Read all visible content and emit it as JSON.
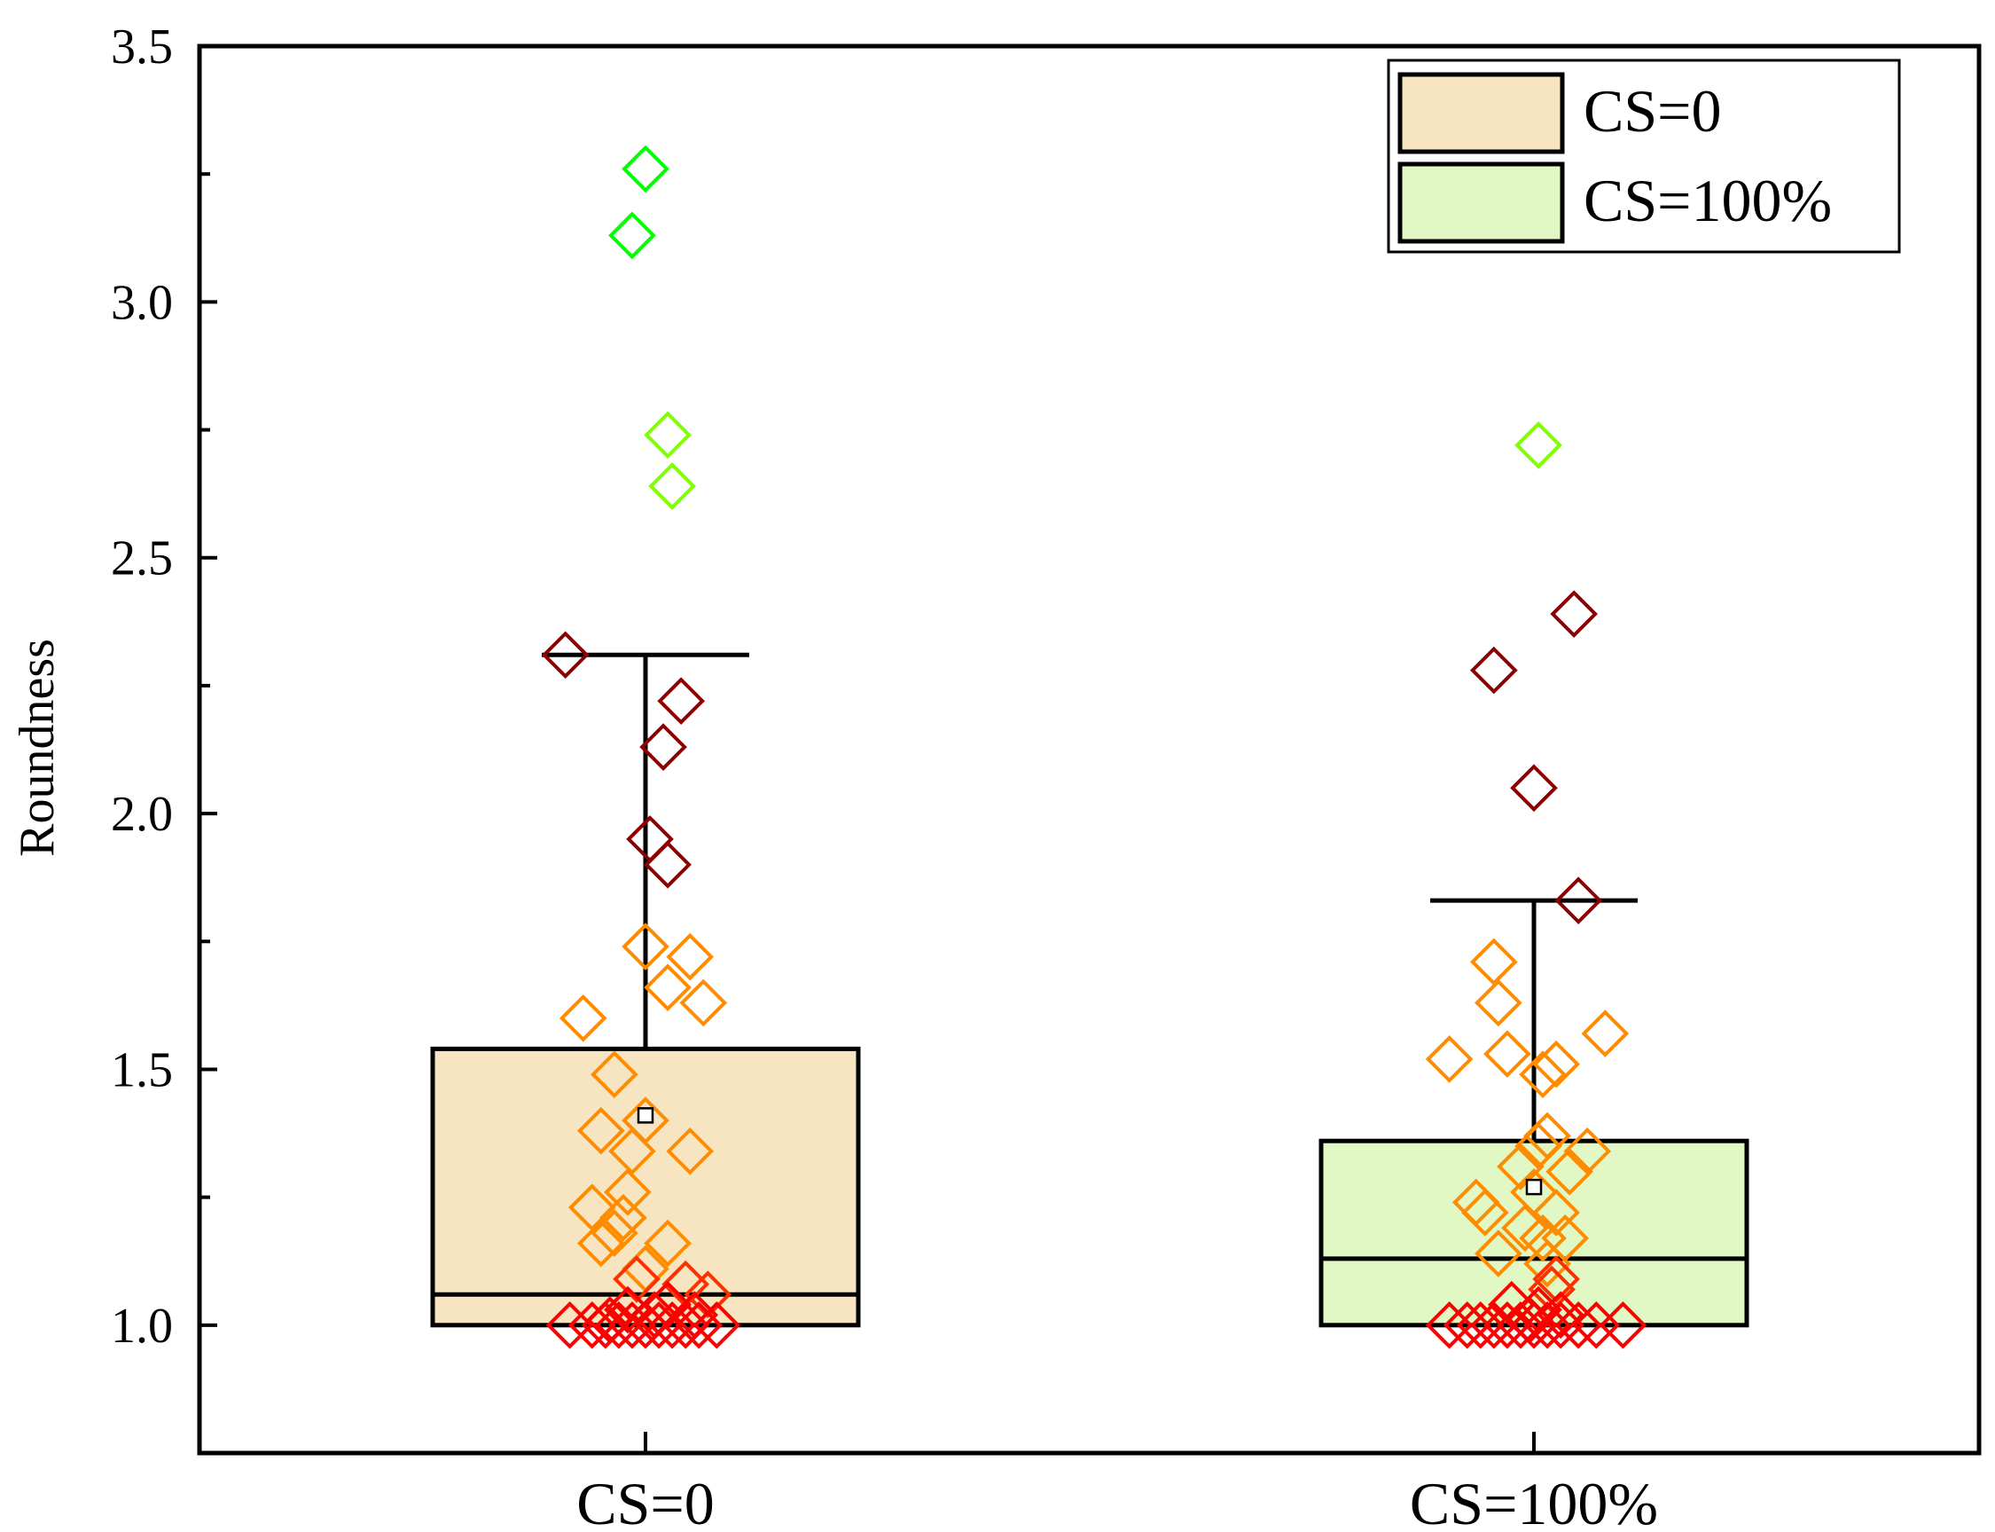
{
  "chart_data": {
    "type": "box",
    "title": "",
    "xlabel": "",
    "ylabel": "Roundness",
    "ylim": [
      0.75,
      3.5
    ],
    "yticks": [
      "1.0",
      "1.5",
      "2.0",
      "2.5",
      "3.0",
      "3.5"
    ],
    "categories": [
      "CS=0",
      "CS=100%"
    ],
    "legend_position": "top-right",
    "legend": [
      {
        "label": "CS=0",
        "color": "#F7E5C1"
      },
      {
        "label": "CS=100%",
        "color": "#E2F8C4"
      }
    ],
    "boxes": [
      {
        "name": "CS=0",
        "q1": 1.0,
        "median": 1.06,
        "q3": 1.54,
        "whisker_low": 1.0,
        "whisker_high": 2.31,
        "mean": 1.41,
        "fill": "#F7E5C1"
      },
      {
        "name": "CS=100%",
        "q1": 1.0,
        "median": 1.13,
        "q3": 1.36,
        "whisker_low": 1.0,
        "whisker_high": 1.83,
        "mean": 1.27,
        "fill": "#E2F8C4"
      }
    ],
    "points": [
      [
        [
          0.0,
          3.26
        ],
        [
          -0.03,
          3.13
        ],
        [
          0.05,
          2.74
        ],
        [
          0.06,
          2.64
        ],
        [
          -0.18,
          2.31
        ],
        [
          0.08,
          2.22
        ],
        [
          0.04,
          2.13
        ],
        [
          0.01,
          1.95
        ],
        [
          0.05,
          1.9
        ],
        [
          0.0,
          1.74
        ],
        [
          0.1,
          1.72
        ],
        [
          0.05,
          1.66
        ],
        [
          0.13,
          1.63
        ],
        [
          -0.14,
          1.6
        ],
        [
          -0.07,
          1.49
        ],
        [
          0.0,
          1.4
        ],
        [
          -0.1,
          1.38
        ],
        [
          -0.03,
          1.34
        ],
        [
          0.1,
          1.34
        ],
        [
          -0.04,
          1.26
        ],
        [
          -0.12,
          1.23
        ],
        [
          -0.05,
          1.21
        ],
        [
          -0.07,
          1.18
        ],
        [
          -0.1,
          1.16
        ],
        [
          0.05,
          1.16
        ],
        [
          0.0,
          1.11
        ],
        [
          -0.02,
          1.09
        ],
        [
          0.09,
          1.08
        ],
        [
          0.14,
          1.06
        ],
        [
          0.05,
          1.04
        ],
        [
          -0.04,
          1.03
        ],
        [
          0.02,
          1.02
        ],
        [
          -0.08,
          1.01
        ],
        [
          0.11,
          1.02
        ],
        [
          -0.17,
          1.0
        ],
        [
          -0.12,
          1.0
        ],
        [
          -0.09,
          1.0
        ],
        [
          -0.06,
          1.0
        ],
        [
          -0.03,
          1.0
        ],
        [
          0.0,
          1.0
        ],
        [
          0.03,
          1.0
        ],
        [
          0.06,
          1.0
        ],
        [
          0.09,
          1.0
        ],
        [
          0.12,
          1.0
        ],
        [
          0.16,
          1.0
        ]
      ],
      [
        [
          0.01,
          2.72
        ],
        [
          0.09,
          2.39
        ],
        [
          -0.09,
          2.28
        ],
        [
          0.0,
          2.05
        ],
        [
          0.1,
          1.83
        ],
        [
          -0.09,
          1.71
        ],
        [
          -0.08,
          1.63
        ],
        [
          0.16,
          1.57
        ],
        [
          -0.06,
          1.53
        ],
        [
          -0.19,
          1.52
        ],
        [
          0.05,
          1.51
        ],
        [
          0.02,
          1.49
        ],
        [
          0.03,
          1.37
        ],
        [
          0.01,
          1.35
        ],
        [
          0.12,
          1.34
        ],
        [
          -0.03,
          1.31
        ],
        [
          0.08,
          1.3
        ],
        [
          0.0,
          1.26
        ],
        [
          -0.13,
          1.24
        ],
        [
          -0.11,
          1.22
        ],
        [
          0.05,
          1.22
        ],
        [
          -0.02,
          1.19
        ],
        [
          0.02,
          1.17
        ],
        [
          0.07,
          1.17
        ],
        [
          -0.08,
          1.14
        ],
        [
          0.03,
          1.12
        ],
        [
          0.05,
          1.09
        ],
        [
          0.04,
          1.07
        ],
        [
          -0.05,
          1.04
        ],
        [
          0.01,
          1.03
        ],
        [
          0.06,
          1.02
        ],
        [
          -0.01,
          1.01
        ],
        [
          -0.19,
          1.0
        ],
        [
          -0.15,
          1.0
        ],
        [
          -0.12,
          1.0
        ],
        [
          -0.09,
          1.0
        ],
        [
          -0.06,
          1.0
        ],
        [
          -0.03,
          1.0
        ],
        [
          0.0,
          1.0
        ],
        [
          0.03,
          1.0
        ],
        [
          0.06,
          1.0
        ],
        [
          0.1,
          1.0
        ],
        [
          0.14,
          1.0
        ],
        [
          0.2,
          1.0
        ]
      ]
    ],
    "point_colors": [
      {
        "min": 2.5,
        "color": "#00FF00"
      },
      {
        "min": 2.6,
        "color": "#7FFF00"
      },
      {
        "min": 1.8,
        "color": "#8B0000"
      },
      {
        "min": 1.1,
        "color": "#FF8C00"
      },
      {
        "min": 1.08,
        "color": "#FF4500"
      },
      {
        "min": 0.0,
        "color": "#FF0000"
      }
    ]
  }
}
